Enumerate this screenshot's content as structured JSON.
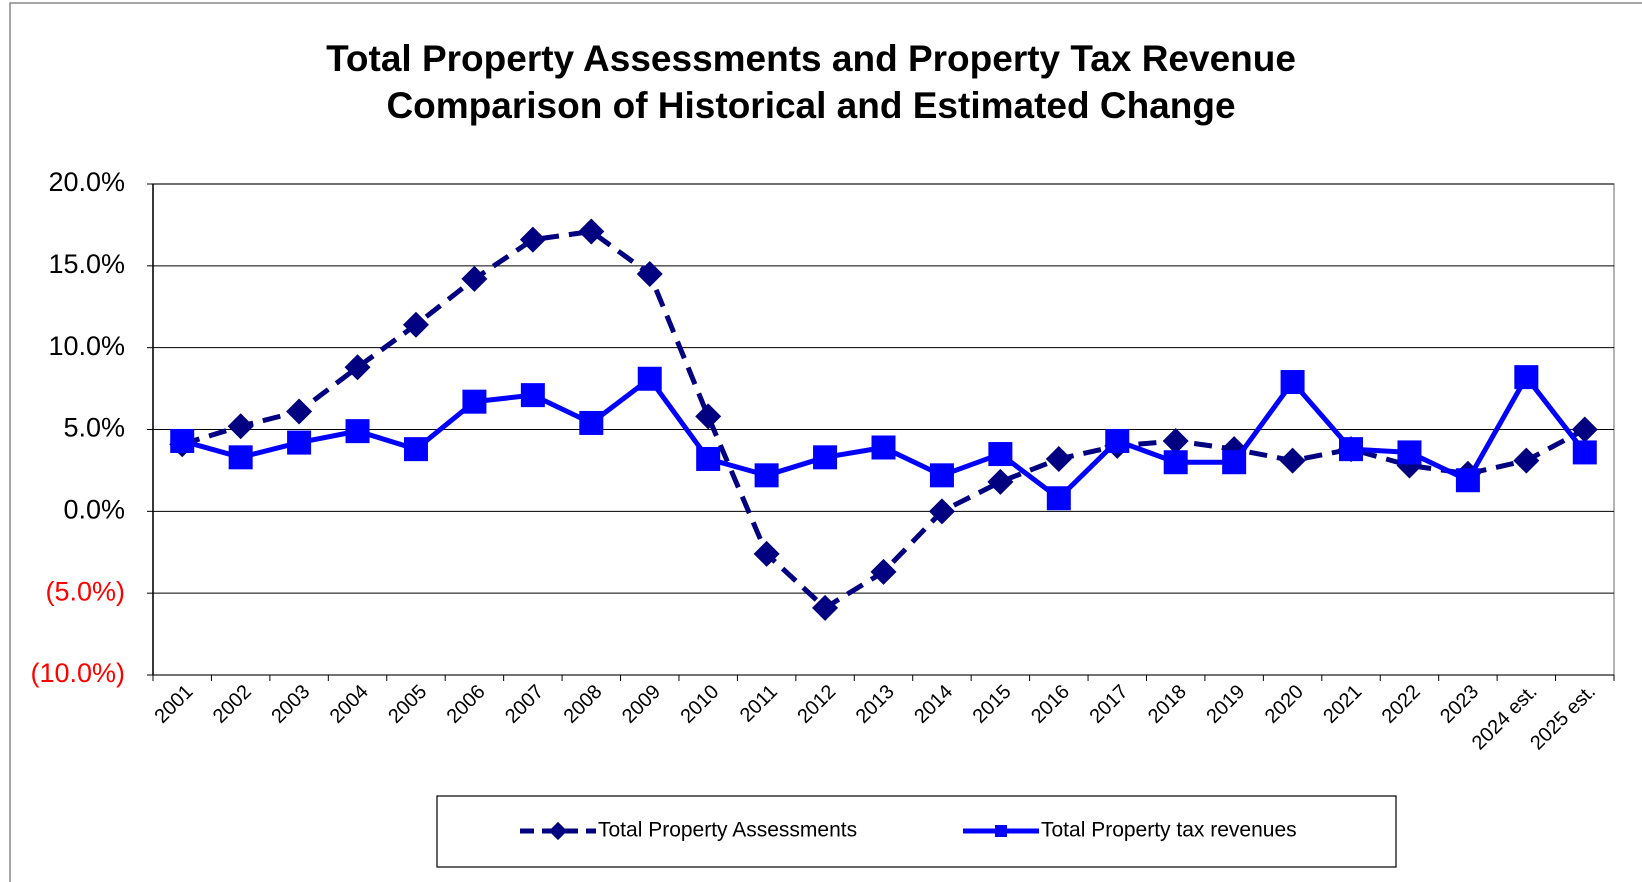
{
  "chart_data": {
    "type": "line",
    "title": "Total Property Assessments and Property Tax Revenue",
    "subtitle": "Comparison of Historical and Estimated Change",
    "categories": [
      "2001",
      "2002",
      "2003",
      "2004",
      "2005",
      "2006",
      "2007",
      "2008",
      "2009",
      "2010",
      "2011",
      "2012",
      "2013",
      "2014",
      "2015",
      "2016",
      "2017",
      "2018",
      "2019",
      "2020",
      "2021",
      "2022",
      "2023",
      "2024 est.",
      "2025 est."
    ],
    "series": [
      {
        "name": "Total Property Assessments",
        "color": "#000080",
        "dashed": true,
        "marker": "diamond",
        "values": [
          4.1,
          5.2,
          6.1,
          8.8,
          11.4,
          14.2,
          16.6,
          17.1,
          14.5,
          5.8,
          -2.6,
          -5.9,
          -3.7,
          0.0,
          1.8,
          3.2,
          4.0,
          4.3,
          3.8,
          3.1,
          3.8,
          2.8,
          2.3,
          3.1,
          5.0
        ]
      },
      {
        "name": "Total Property tax revenues",
        "color": "#0000ff",
        "dashed": false,
        "marker": "square",
        "values": [
          4.3,
          3.3,
          4.2,
          4.9,
          3.8,
          6.7,
          7.1,
          5.4,
          8.1,
          3.2,
          2.2,
          3.3,
          3.9,
          2.2,
          3.5,
          0.8,
          4.3,
          3.0,
          3.0,
          7.9,
          3.8,
          3.6,
          1.9,
          8.2,
          3.6
        ]
      }
    ],
    "ylim": [
      -10,
      20
    ],
    "yticks": [
      {
        "value": -10,
        "label": "(10.0%)"
      },
      {
        "value": -5,
        "label": "(5.0%)"
      },
      {
        "value": 0,
        "label": "0.0%"
      },
      {
        "value": 5,
        "label": "5.0%"
      },
      {
        "value": 10,
        "label": "10.0%"
      },
      {
        "value": 15,
        "label": "15.0%"
      },
      {
        "value": 20,
        "label": "20.0%"
      }
    ],
    "grid": true,
    "negative_tick_color": "#ff0000",
    "legend": "bottom"
  }
}
